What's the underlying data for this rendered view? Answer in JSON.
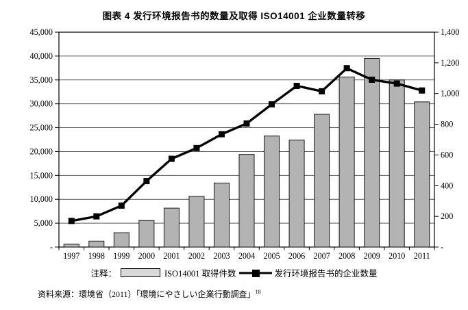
{
  "title": "图表 4  发行环境报告书的数量及取得 ISO14001 企业数量转移",
  "legend": {
    "prefix": "注释：",
    "bar_label": "ISO14001 取得件数",
    "line_label": "发行环境报告书的企业数量"
  },
  "source": "资料来源：環境省（2011）「環境にやさしい企業行動調査」",
  "source_superscript": "18",
  "chart_data": {
    "type": "bar",
    "subtype": "bar-line-combo",
    "title": "图表 4  发行环境报告书的数量及取得 ISO14001 企业数量转移",
    "categories": [
      "1997",
      "1998",
      "1999",
      "2000",
      "2001",
      "2002",
      "2003",
      "2004",
      "2005",
      "2006",
      "2007",
      "2008",
      "2009",
      "2010",
      "2011"
    ],
    "series": [
      {
        "name": "ISO14001 取得件数",
        "type": "bar",
        "axis": "left",
        "color": "#b3b3b3",
        "values": [
          600,
          1250,
          3000,
          5550,
          8150,
          10600,
          13400,
          19400,
          23250,
          22400,
          27800,
          35600,
          39500,
          35000,
          30400
        ]
      },
      {
        "name": "发行环境报告书的企业数量",
        "type": "line",
        "axis": "right",
        "color": "#000000",
        "values": [
          170,
          200,
          270,
          430,
          575,
          645,
          735,
          805,
          930,
          1050,
          1015,
          1165,
          1090,
          1065,
          1020
        ]
      }
    ],
    "left_axis": {
      "min": 0,
      "max": 45000,
      "step": 5000,
      "tick_labels": [
        "45,000",
        "40,000",
        "35,000",
        "30,000",
        "25,000",
        "20,000",
        "15,000",
        "10,000",
        "5,000",
        "-"
      ]
    },
    "right_axis": {
      "min": 0,
      "max": 1400,
      "step": 200,
      "tick_labels": [
        "1,400",
        "1,200",
        "1,000",
        "800",
        "600",
        "400",
        "200",
        "-"
      ]
    },
    "grid": true,
    "legend_position": "bottom",
    "colors": {
      "bar_fill": "#b3b3b3",
      "bar_stroke": "#1a1a1a",
      "line_stroke": "#000000",
      "gridline": "#595959",
      "frame": "#000000"
    }
  }
}
